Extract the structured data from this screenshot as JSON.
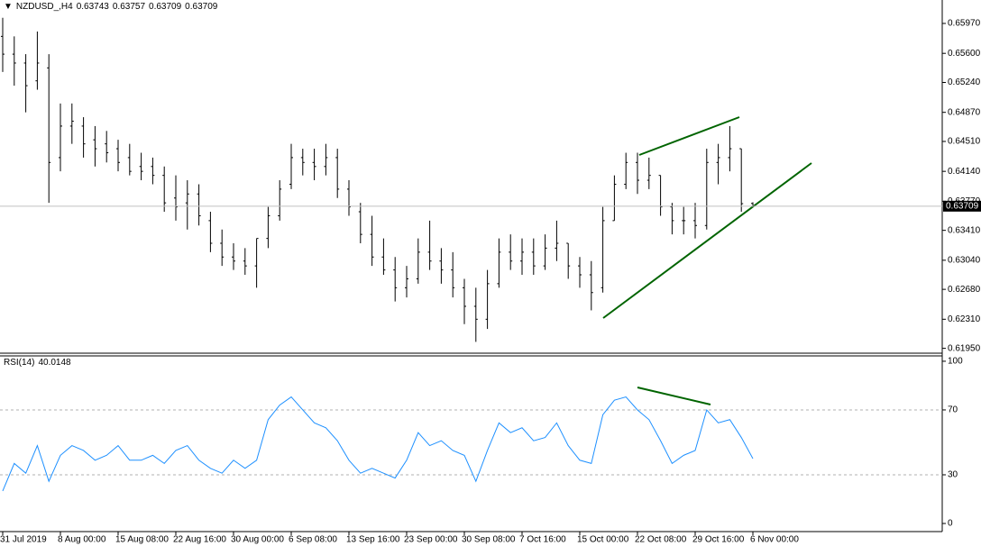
{
  "chart_data": [
    {
      "type": "ohlc",
      "title": "NZDUSD_,H4",
      "color": "#000000",
      "categories": [
        "31 Jul 2019",
        null,
        null,
        null,
        null,
        "8 Aug 00:00",
        null,
        null,
        null,
        null,
        "15 Aug 08:00",
        null,
        null,
        null,
        null,
        "22 Aug 16:00",
        null,
        null,
        null,
        null,
        "30 Aug 00:00",
        null,
        null,
        null,
        null,
        "6 Sep 08:00",
        null,
        null,
        null,
        null,
        "13 Sep 16:00",
        null,
        null,
        null,
        null,
        "23 Sep 00:00",
        null,
        null,
        null,
        null,
        "30 Sep 08:00",
        null,
        null,
        null,
        null,
        "7 Oct 16:00",
        null,
        null,
        null,
        null,
        "15 Oct 00:00",
        null,
        null,
        null,
        null,
        "22 Oct 08:00",
        null,
        null,
        null,
        null,
        "29 Oct 16:00",
        null,
        null,
        null,
        null,
        "6 Nov 00:00"
      ],
      "open": [
        0.6581,
        0.6559,
        0.6548,
        0.6526,
        0.6542,
        0.6431,
        0.647,
        0.647,
        0.6453,
        0.6448,
        0.6442,
        0.6431,
        0.642,
        0.642,
        0.6409,
        0.6381,
        0.6375,
        0.6386,
        0.6353,
        0.6325,
        0.6308,
        0.6303,
        0.6297,
        0.6331,
        0.6359,
        0.6398,
        0.6431,
        0.6425,
        0.642,
        0.6431,
        0.6392,
        0.6364,
        0.6336,
        0.6308,
        0.6292,
        0.627,
        0.6281,
        0.6314,
        0.6303,
        0.6292,
        0.627,
        0.6247,
        0.6231,
        0.6275,
        0.6314,
        0.6303,
        0.6314,
        0.6297,
        0.6319,
        0.6325,
        0.6297,
        0.6286,
        0.627,
        0.6353,
        0.6398,
        0.6425,
        0.6403,
        0.6409,
        0.637,
        0.6353,
        0.6353,
        0.6347,
        0.6425,
        0.6431,
        0.6442,
        0.63743
      ],
      "high": [
        0.6604,
        0.6581,
        0.6559,
        0.6587,
        0.6559,
        0.6498,
        0.6498,
        0.6481,
        0.647,
        0.6464,
        0.6453,
        0.6448,
        0.6437,
        0.6431,
        0.642,
        0.6409,
        0.6403,
        0.6398,
        0.6364,
        0.6342,
        0.6325,
        0.6319,
        0.6331,
        0.637,
        0.6403,
        0.6448,
        0.6442,
        0.6442,
        0.6448,
        0.6442,
        0.6403,
        0.6375,
        0.6359,
        0.6331,
        0.6308,
        0.6297,
        0.6331,
        0.6353,
        0.6319,
        0.6314,
        0.6281,
        0.627,
        0.6292,
        0.6331,
        0.6336,
        0.6331,
        0.6331,
        0.6336,
        0.6353,
        0.6325,
        0.6308,
        0.6303,
        0.637,
        0.6409,
        0.6437,
        0.6437,
        0.6431,
        0.6409,
        0.6375,
        0.637,
        0.6375,
        0.6442,
        0.6448,
        0.647,
        0.6442,
        0.63757
      ],
      "low": [
        0.6537,
        0.652,
        0.6487,
        0.6515,
        0.6375,
        0.6414,
        0.6448,
        0.6431,
        0.642,
        0.6425,
        0.6414,
        0.6409,
        0.6403,
        0.6398,
        0.6364,
        0.6353,
        0.6342,
        0.6347,
        0.6314,
        0.6297,
        0.6292,
        0.6286,
        0.627,
        0.6319,
        0.6353,
        0.6392,
        0.6409,
        0.6403,
        0.6409,
        0.6381,
        0.6359,
        0.6325,
        0.6297,
        0.6286,
        0.6253,
        0.6258,
        0.6275,
        0.6292,
        0.6275,
        0.6258,
        0.6225,
        0.6203,
        0.6219,
        0.627,
        0.6292,
        0.6286,
        0.6286,
        0.6292,
        0.6303,
        0.6281,
        0.627,
        0.6242,
        0.6264,
        0.6353,
        0.6392,
        0.6386,
        0.6392,
        0.6359,
        0.6336,
        0.6336,
        0.6331,
        0.6342,
        0.6398,
        0.6414,
        0.6364,
        0.63709
      ],
      "close": [
        0.6559,
        0.6548,
        0.652,
        0.6548,
        0.6425,
        0.647,
        0.6476,
        0.6448,
        0.6442,
        0.6437,
        0.6425,
        0.6414,
        0.6414,
        0.6409,
        0.6375,
        0.637,
        0.6386,
        0.6359,
        0.6325,
        0.6308,
        0.6303,
        0.6297,
        0.6331,
        0.6359,
        0.6392,
        0.6431,
        0.6425,
        0.642,
        0.6431,
        0.6392,
        0.637,
        0.6336,
        0.6308,
        0.6292,
        0.627,
        0.6281,
        0.6314,
        0.6303,
        0.6292,
        0.627,
        0.6247,
        0.6231,
        0.6275,
        0.6314,
        0.6303,
        0.6314,
        0.6297,
        0.6319,
        0.6325,
        0.6297,
        0.6286,
        0.6264,
        0.6353,
        0.6398,
        0.6425,
        0.6403,
        0.6409,
        0.637,
        0.6353,
        0.6353,
        0.6347,
        0.6425,
        0.6431,
        0.6442,
        0.6374,
        0.63709
      ],
      "ylim": [
        0.6189,
        0.6626
      ],
      "yticks": [
        {
          "value": 0.6597,
          "label": "0.65970"
        },
        {
          "value": 0.656,
          "label": "0.65600"
        },
        {
          "value": 0.6524,
          "label": "0.65240"
        },
        {
          "value": 0.6487,
          "label": "0.64870"
        },
        {
          "value": 0.6451,
          "label": "0.64510"
        },
        {
          "value": 0.6414,
          "label": "0.64140"
        },
        {
          "value": 0.6377,
          "label": "0.63770"
        },
        {
          "value": 0.6341,
          "label": "0.63410"
        },
        {
          "value": 0.6304,
          "label": "0.63040"
        },
        {
          "value": 0.6268,
          "label": "0.62680"
        },
        {
          "value": 0.6231,
          "label": "0.62310"
        },
        {
          "value": 0.6195,
          "label": "0.61950"
        }
      ],
      "price_line": true
    },
    {
      "type": "line",
      "title": "RSI(14)",
      "color": "#1e90ff",
      "values": [
        20,
        37,
        31,
        48,
        26,
        42,
        48,
        45,
        39,
        42,
        48,
        39,
        39,
        42,
        37,
        45,
        48,
        39,
        34,
        31,
        39,
        34,
        39,
        64,
        73,
        78,
        70,
        62,
        59,
        51,
        39,
        31,
        34,
        31,
        28,
        39,
        56,
        48,
        51,
        45,
        42,
        26,
        45,
        62,
        56,
        59,
        51,
        53,
        62,
        48,
        39,
        37,
        67,
        76,
        78,
        70,
        64,
        51,
        37,
        42,
        45,
        70,
        62,
        64,
        53,
        40.0148
      ],
      "ylim": [
        -5,
        103.3
      ],
      "yticks": [
        100,
        70,
        30,
        0
      ],
      "levels": [
        70,
        30
      ]
    }
  ]
}
